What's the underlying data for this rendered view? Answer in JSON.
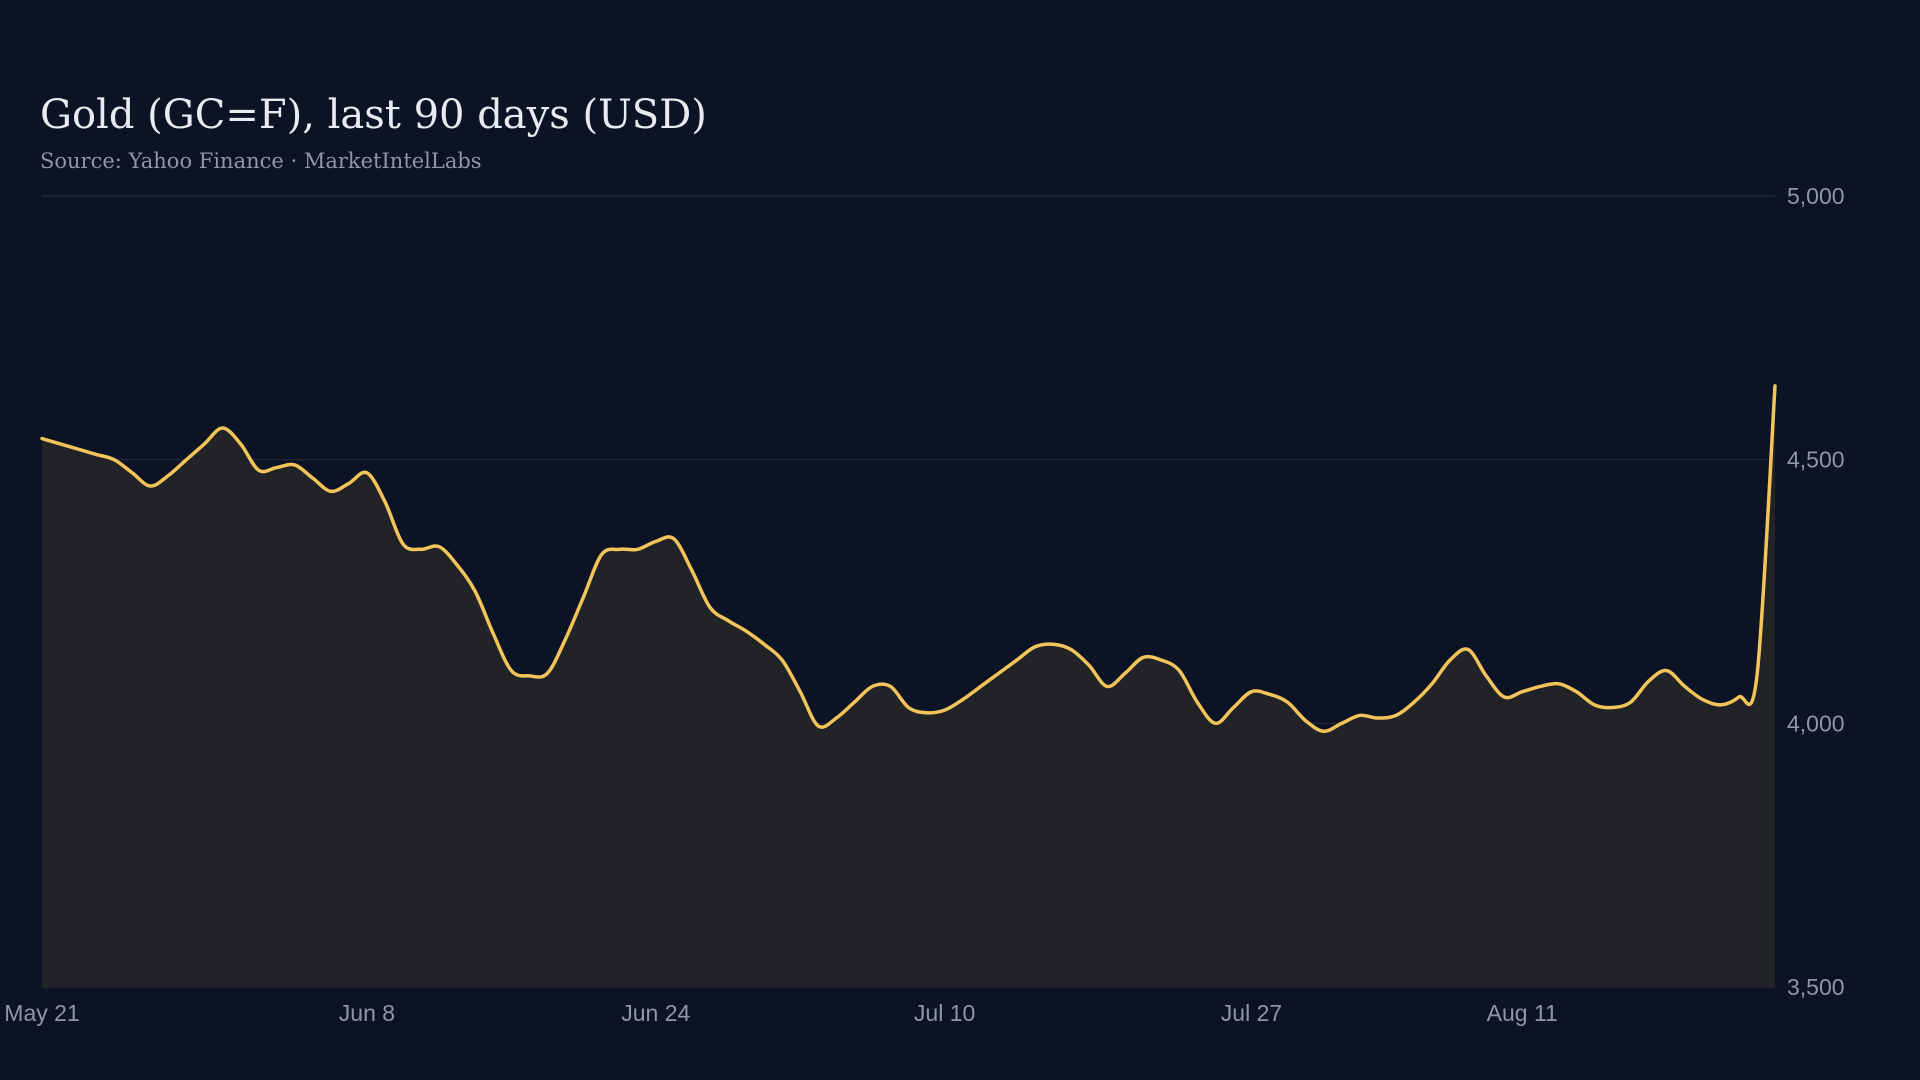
{
  "colors": {
    "background": "#0c1324",
    "line": "#f2c45a",
    "area": "#212327",
    "grid": "#262c3a",
    "text": "#e8ebf2",
    "muted_text": "#8e96a8"
  },
  "chart_data": {
    "type": "area",
    "title": "Gold (GC=F), last 90 days (USD)",
    "subtitle": "Source: Yahoo Finance · MarketIntelLabs",
    "xlabel": "",
    "ylabel": "",
    "x_range": [
      "2025-05-21",
      "2025-08-25"
    ],
    "ylim": [
      3500,
      5000
    ],
    "y_axis_position": "right",
    "grid": true,
    "y_ticks": [
      {
        "value": 3500,
        "label": "3,500"
      },
      {
        "value": 4000,
        "label": "4,000"
      },
      {
        "value": 4500,
        "label": "4,500"
      },
      {
        "value": 5000,
        "label": "5,000"
      }
    ],
    "x_ticks": [
      {
        "date": "2025-05-21",
        "label": "May 21"
      },
      {
        "date": "2025-06-08",
        "label": "Jun  8"
      },
      {
        "date": "2025-06-24",
        "label": "Jun 24"
      },
      {
        "date": "2025-07-10",
        "label": "Jul 10"
      },
      {
        "date": "2025-07-27",
        "label": "Jul 27"
      },
      {
        "date": "2025-08-11",
        "label": "Aug 11"
      }
    ],
    "series": [
      {
        "values": [
          [
            "2025-05-21",
            4540
          ],
          [
            "2025-05-22",
            4530
          ],
          [
            "2025-05-23",
            4520
          ],
          [
            "2025-05-24",
            4510
          ],
          [
            "2025-05-25",
            4500
          ],
          [
            "2025-05-26",
            4475
          ],
          [
            "2025-05-27",
            4450
          ],
          [
            "2025-05-28",
            4470
          ],
          [
            "2025-05-29",
            4500
          ],
          [
            "2025-05-30",
            4530
          ],
          [
            "2025-05-31",
            4560
          ],
          [
            "2025-06-01",
            4530
          ],
          [
            "2025-06-02",
            4480
          ],
          [
            "2025-06-03",
            4485
          ],
          [
            "2025-06-04",
            4490
          ],
          [
            "2025-06-05",
            4465
          ],
          [
            "2025-06-06",
            4440
          ],
          [
            "2025-06-07",
            4455
          ],
          [
            "2025-06-08",
            4475
          ],
          [
            "2025-06-09",
            4420
          ],
          [
            "2025-06-10",
            4340
          ],
          [
            "2025-06-11",
            4330
          ],
          [
            "2025-06-12",
            4335
          ],
          [
            "2025-06-13",
            4300
          ],
          [
            "2025-06-14",
            4250
          ],
          [
            "2025-06-15",
            4170
          ],
          [
            "2025-06-16",
            4100
          ],
          [
            "2025-06-17",
            4090
          ],
          [
            "2025-06-18",
            4095
          ],
          [
            "2025-06-19",
            4160
          ],
          [
            "2025-06-20",
            4240
          ],
          [
            "2025-06-21",
            4320
          ],
          [
            "2025-06-22",
            4330
          ],
          [
            "2025-06-23",
            4330
          ],
          [
            "2025-06-24",
            4345
          ],
          [
            "2025-06-25",
            4350
          ],
          [
            "2025-06-26",
            4290
          ],
          [
            "2025-06-27",
            4220
          ],
          [
            "2025-06-28",
            4195
          ],
          [
            "2025-06-29",
            4175
          ],
          [
            "2025-06-30",
            4150
          ],
          [
            "2025-07-01",
            4120
          ],
          [
            "2025-07-02",
            4060
          ],
          [
            "2025-07-03",
            3995
          ],
          [
            "2025-07-04",
            4010
          ],
          [
            "2025-07-05",
            4040
          ],
          [
            "2025-07-06",
            4070
          ],
          [
            "2025-07-07",
            4070
          ],
          [
            "2025-07-08",
            4030
          ],
          [
            "2025-07-09",
            4020
          ],
          [
            "2025-07-10",
            4025
          ],
          [
            "2025-07-11",
            4045
          ],
          [
            "2025-07-12",
            4070
          ],
          [
            "2025-07-13",
            4095
          ],
          [
            "2025-07-14",
            4120
          ],
          [
            "2025-07-15",
            4145
          ],
          [
            "2025-07-16",
            4150
          ],
          [
            "2025-07-17",
            4140
          ],
          [
            "2025-07-18",
            4110
          ],
          [
            "2025-07-19",
            4070
          ],
          [
            "2025-07-20",
            4095
          ],
          [
            "2025-07-21",
            4125
          ],
          [
            "2025-07-22",
            4120
          ],
          [
            "2025-07-23",
            4100
          ],
          [
            "2025-07-24",
            4040
          ],
          [
            "2025-07-25",
            4000
          ],
          [
            "2025-07-26",
            4030
          ],
          [
            "2025-07-27",
            4060
          ],
          [
            "2025-07-28",
            4055
          ],
          [
            "2025-07-29",
            4040
          ],
          [
            "2025-07-30",
            4005
          ],
          [
            "2025-07-31",
            3985
          ],
          [
            "2025-08-01",
            4000
          ],
          [
            "2025-08-02",
            4015
          ],
          [
            "2025-08-03",
            4010
          ],
          [
            "2025-08-04",
            4015
          ],
          [
            "2025-08-05",
            4040
          ],
          [
            "2025-08-06",
            4075
          ],
          [
            "2025-08-07",
            4120
          ],
          [
            "2025-08-08",
            4140
          ],
          [
            "2025-08-09",
            4090
          ],
          [
            "2025-08-10",
            4050
          ],
          [
            "2025-08-11",
            4060
          ],
          [
            "2025-08-12",
            4070
          ],
          [
            "2025-08-13",
            4075
          ],
          [
            "2025-08-14",
            4060
          ],
          [
            "2025-08-15",
            4035
          ],
          [
            "2025-08-16",
            4030
          ],
          [
            "2025-08-17",
            4040
          ],
          [
            "2025-08-18",
            4080
          ],
          [
            "2025-08-19",
            4100
          ],
          [
            "2025-08-20",
            4070
          ],
          [
            "2025-08-21",
            4045
          ],
          [
            "2025-08-22",
            4035
          ],
          [
            "2025-08-23",
            4050
          ],
          [
            "2025-08-24",
            4090
          ],
          [
            "2025-08-25",
            4640
          ]
        ]
      }
    ]
  }
}
